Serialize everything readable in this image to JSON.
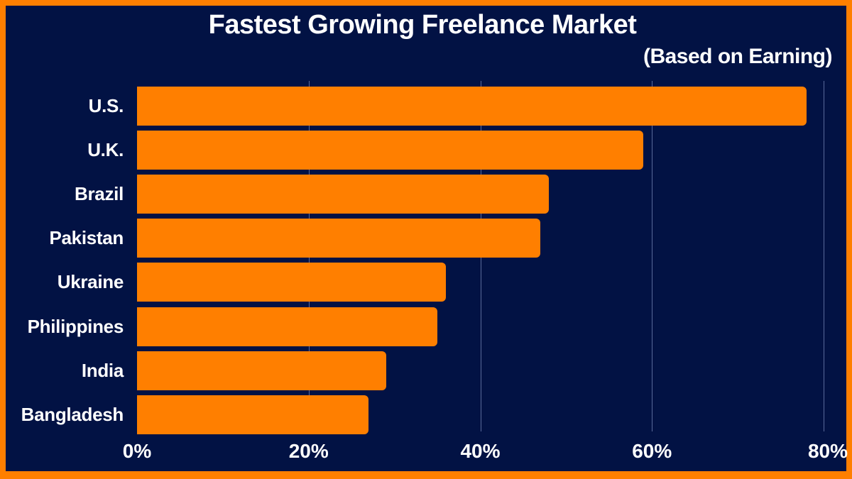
{
  "chart_data": {
    "type": "bar",
    "orientation": "horizontal",
    "title": "Fastest Growing Freelance Market",
    "subtitle": "(Based on Earning)",
    "categories": [
      "U.S.",
      "U.K.",
      "Brazil",
      "Pakistan",
      "Ukraine",
      "Philippines",
      "India",
      "Bangladesh"
    ],
    "values": [
      78,
      59,
      48,
      47,
      36,
      35,
      29,
      27
    ],
    "unit": "%",
    "xlabel": "",
    "ylabel": "",
    "xlim": [
      0,
      80
    ],
    "x_ticks": [
      "0%",
      "20%",
      "40%",
      "60%",
      "80%"
    ],
    "grid": true,
    "legend": null,
    "colors": {
      "bar": "#ff7f00",
      "background": "#021244",
      "border": "#ff7f00",
      "text": "#ffffff",
      "grid": "#5a6a9a"
    }
  }
}
